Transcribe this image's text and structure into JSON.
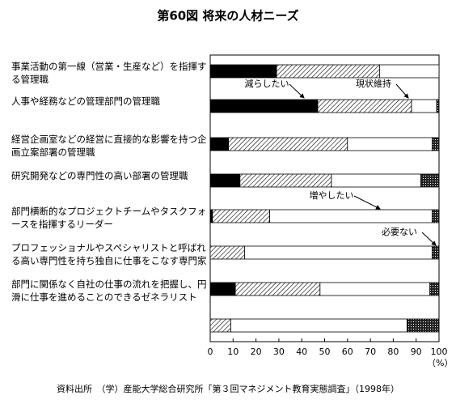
{
  "chart_data": {
    "type": "stacked-bar-horizontal",
    "title": "第60図 将来の人材ニーズ",
    "categories": [
      "事業活動の第一線（営業・生産など）を指揮する管理職",
      "人事や経務などの管理部門の管理職",
      "経営企画室などの経営に直接的な影響を持つ企画立案部署の管理職",
      "研究開発などの専門性の高い部署の管理職",
      "部門横断的なプロジェクトチームやタスクフォースを指揮するリーダー",
      "プロフェッショナルやスペシャリストと呼ばれる高い専門性を持ち独自に仕事をこなす専門家",
      "部門に関係なく自社の仕事の流れを把握し、円滑に仕事を進めることのできるゼネラリスト",
      null
    ],
    "series": [
      {
        "name": "減らしたい",
        "color": "#000000",
        "pattern": "solid",
        "values": [
          29,
          47,
          8,
          13,
          1,
          0,
          11,
          0
        ]
      },
      {
        "name": "現状維持",
        "color": "#000000",
        "pattern": "hatch",
        "values": [
          45,
          41,
          52,
          40,
          25,
          15,
          37,
          9
        ]
      },
      {
        "name": "増やしたい",
        "color": "#ffffff",
        "pattern": "none",
        "values": [
          26,
          11,
          37,
          39,
          71,
          82,
          48,
          77
        ]
      },
      {
        "name": "必要ない",
        "color": "#000000",
        "pattern": "dots",
        "values": [
          0,
          1,
          3,
          8,
          3,
          3,
          4,
          14
        ]
      }
    ],
    "xlim": [
      0,
      100
    ],
    "xticks": [
      0,
      10,
      20,
      30,
      40,
      50,
      60,
      70,
      80,
      90,
      100
    ],
    "x_unit": "（%）",
    "source": "資料出所　（学）産能大学総合研究所「第３回マネジメント教育実態調査」（1998年）"
  }
}
